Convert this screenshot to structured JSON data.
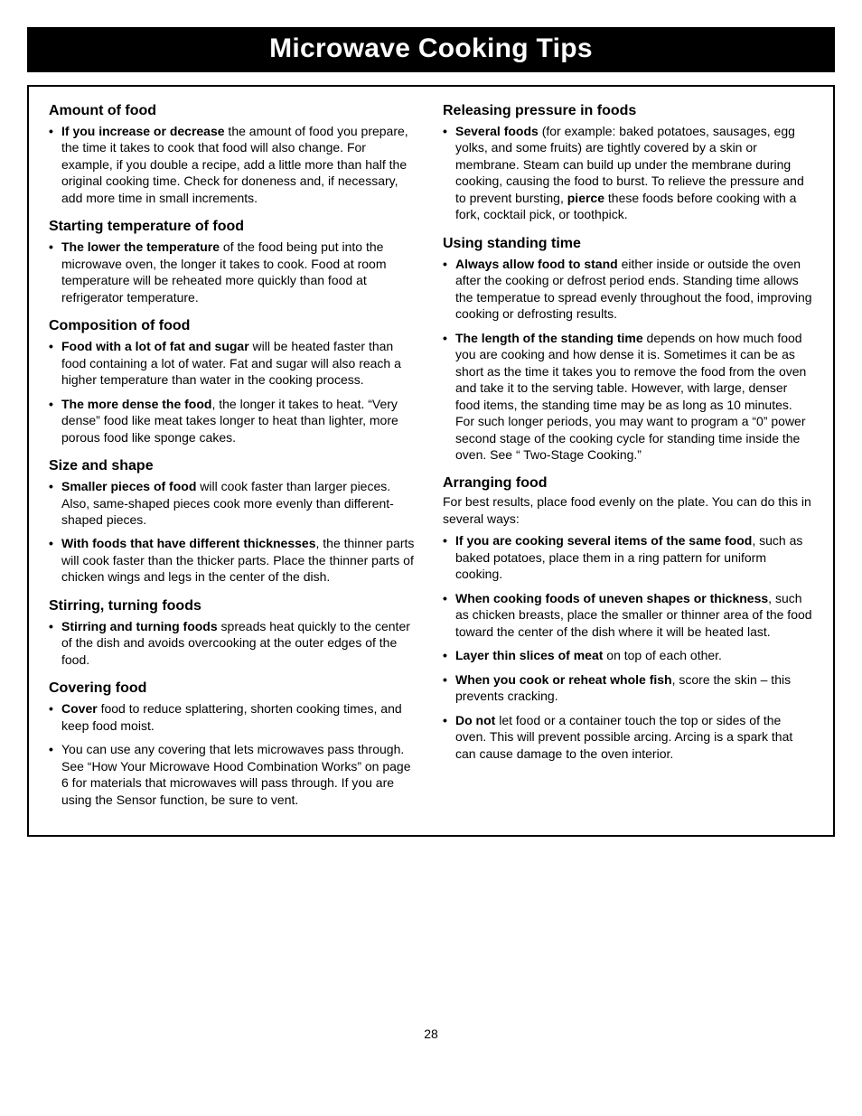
{
  "page": {
    "title": "Microwave Cooking Tips",
    "number": "28",
    "colors": {
      "title_bg": "#000000",
      "title_fg": "#ffffff",
      "page_bg": "#ffffff",
      "border": "#000000"
    },
    "typography": {
      "title_fontsize": 30,
      "heading_fontsize": 16,
      "body_fontsize": 14,
      "line_height": 1.32,
      "font_family": "Arial"
    }
  },
  "left_col": {
    "amount": {
      "heading": "Amount of food",
      "item1": {
        "bold": "If you increase or decrease",
        "rest": " the amount of food you prepare, the time it takes to cook that food will also change. For example, if you double a recipe, add a little more than half the original cooking time. Check for doneness and, if necessary, add more time in small increments."
      }
    },
    "starting_temp": {
      "heading": "Starting temperature of food",
      "item1": {
        "bold": "The lower the temperature",
        "rest": " of the food being put into the microwave oven, the longer it takes to cook. Food at room temperature will be reheated more quickly than food at refrigerator temperature."
      }
    },
    "composition": {
      "heading": "Composition of food",
      "item1": {
        "bold": "Food with a lot of fat and sugar",
        "rest": " will be heated faster than food containing a lot of water. Fat and sugar will also reach a higher temperature than water in the cooking process."
      },
      "item2": {
        "bold": "The more dense the food",
        "rest": ", the longer it takes to heat. “Very dense” food like meat takes longer to heat than lighter, more porous food like sponge cakes."
      }
    },
    "size_shape": {
      "heading": "Size and shape",
      "item1": {
        "bold": "Smaller pieces of food",
        "rest": " will cook faster than larger pieces. Also, same-shaped pieces cook more evenly than different-shaped pieces."
      },
      "item2": {
        "bold": "With foods that have different thicknesses",
        "rest": ", the thinner parts will cook faster than the thicker parts. Place the thinner parts of chicken wings and legs in the center of the dish."
      }
    },
    "stirring": {
      "heading": "Stirring, turning foods",
      "item1": {
        "bold": "Stirring and turning foods",
        "rest": " spreads heat quickly to the center of the dish and avoids overcooking at the outer edges of the food."
      }
    },
    "covering": {
      "heading": "Covering food",
      "item1": {
        "bold": "Cover",
        "rest": " food to reduce splattering, shorten cooking times, and keep food moist."
      },
      "item2": {
        "plain": "You can use any covering that lets microwaves pass through. See “How Your Microwave Hood Combination Works” on page 6 for materials that microwaves will pass through. If you are using the Sensor function, be sure to vent."
      }
    }
  },
  "right_col": {
    "releasing": {
      "heading": "Releasing pressure in foods",
      "item1": {
        "bold1": "Several foods",
        "mid": " (for example: baked potatoes, sausages, egg yolks, and some fruits) are tightly covered by a skin or membrane. Steam can build up under the membrane during cooking, causing the food to burst. To relieve the pressure and to prevent bursting, ",
        "bold2": "pierce",
        "rest": " these foods before cooking with a fork, cocktail pick, or toothpick."
      }
    },
    "standing": {
      "heading": "Using standing time",
      "item1": {
        "bold": "Always allow food to stand",
        "rest": " either inside or outside the oven after the cooking or defrost period ends. Standing time allows the temperatue to spread evenly throughout the food, improving cooking or defrosting results."
      },
      "item2": {
        "bold": "The length of the standing time",
        "rest": " depends on how much food you are cooking and how dense it is. Sometimes it can be as short as the time it takes you to remove the food from the oven and take it to the serving table. However, with large, denser food items, the standing time may be as long as 10 minutes. For such longer periods, you may want to program a “0” power second stage of the cooking cycle for standing time inside the oven. See “ Two-Stage Cooking.”"
      }
    },
    "arranging": {
      "heading": "Arranging food",
      "intro": "For best results, place food evenly on the plate. You can do this in several ways:",
      "item1": {
        "bold": "If you are cooking several items of the same food",
        "rest": ", such as baked potatoes, place them in a ring pattern for uniform cooking."
      },
      "item2": {
        "bold": "When cooking foods of uneven shapes or thickness",
        "rest": ", such as chicken breasts, place the smaller or thinner area of the food toward the center of the dish where it will be heated last."
      },
      "item3": {
        "bold": "Layer thin slices of meat",
        "rest": " on top of each other."
      },
      "item4": {
        "bold": "When you cook or reheat whole fish",
        "rest": ", score the skin – this prevents cracking."
      },
      "item5": {
        "bold": "Do not",
        "rest": " let food or a container touch the top or sides of the oven. This will prevent possible arcing. Arcing is a spark that can cause damage to the oven interior."
      }
    }
  }
}
